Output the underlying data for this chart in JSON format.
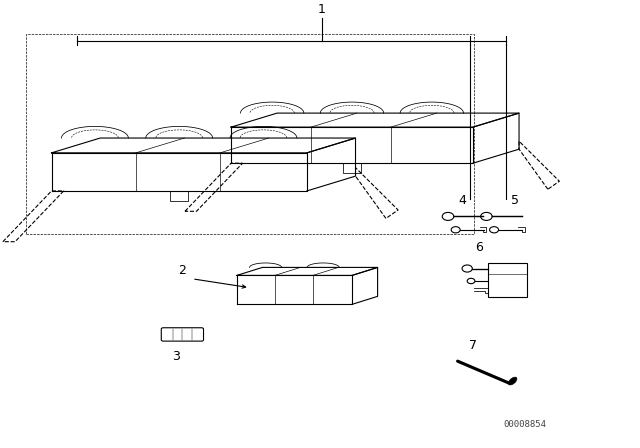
{
  "bg_color": "#ffffff",
  "line_color": "#000000",
  "fig_width": 6.4,
  "fig_height": 4.48,
  "dpi": 100,
  "watermark": "00008854"
}
